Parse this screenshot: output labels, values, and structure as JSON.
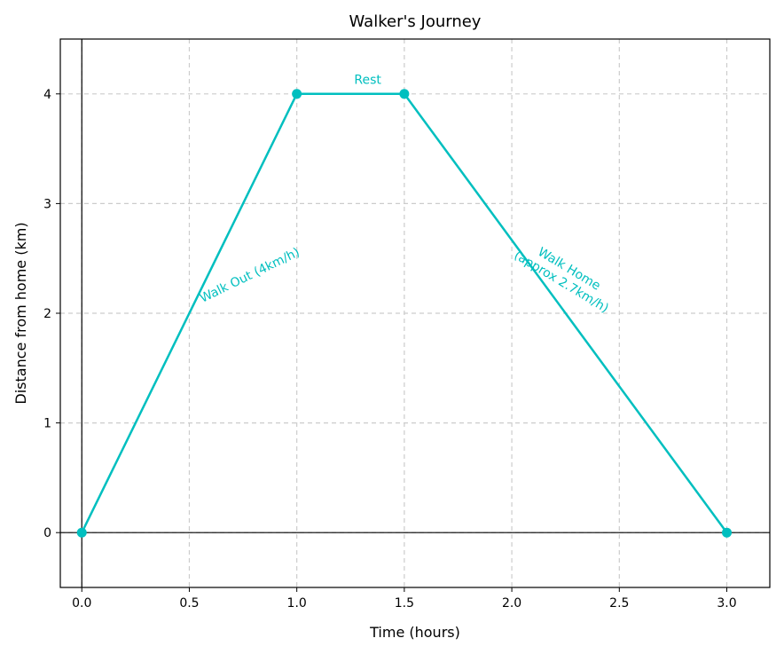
{
  "chart_data": {
    "type": "line",
    "title": "Walker's Journey",
    "xlabel": "Time (hours)",
    "ylabel": "Distance from home (km)",
    "xlim": [
      -0.1,
      3.2
    ],
    "ylim": [
      -0.5,
      4.5
    ],
    "xticks": [
      0.0,
      0.5,
      1.0,
      1.5,
      2.0,
      2.5,
      3.0
    ],
    "xtick_labels": [
      "0.0",
      "0.5",
      "1.0",
      "1.5",
      "2.0",
      "2.5",
      "3.0"
    ],
    "yticks": [
      0,
      1,
      2,
      3,
      4
    ],
    "ytick_labels": [
      "0",
      "1",
      "2",
      "3",
      "4"
    ],
    "grid": true,
    "zero_lines": true,
    "series": [
      {
        "x": [
          0,
          1,
          1.5,
          3
        ],
        "y": [
          0,
          4,
          4,
          0
        ],
        "color": "#00bfbf",
        "marker": "circle"
      }
    ],
    "annotations": [
      {
        "lines": [
          "Rest"
        ],
        "x": 1.33,
        "y": 4.13,
        "rotation": 0
      },
      {
        "lines": [
          "Walk Out (4km/h)"
        ],
        "x": 0.78,
        "y": 2.35,
        "rotation": -26
      },
      {
        "lines": [
          "Walk Home",
          "(approx 2.7km/h)"
        ],
        "x": 2.25,
        "y": 2.35,
        "rotation": 31
      }
    ]
  }
}
